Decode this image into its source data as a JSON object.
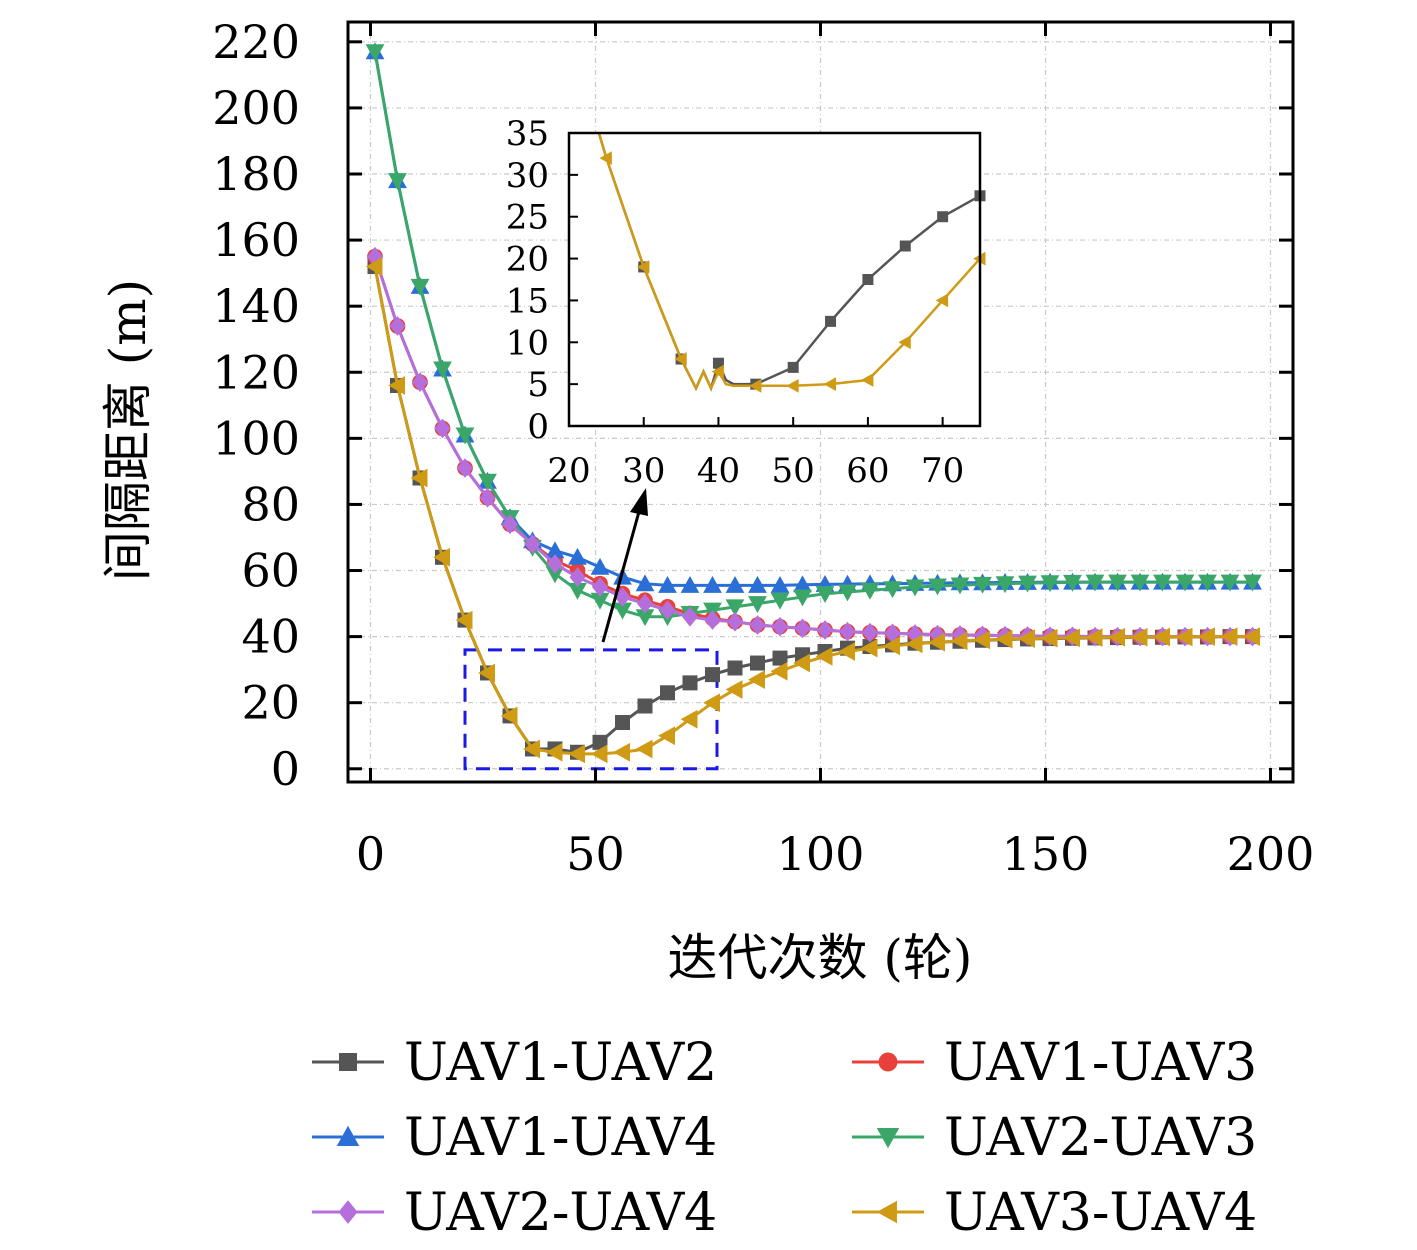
{
  "chart_data": {
    "type": "line",
    "title": "",
    "xlabel": "迭代次数 (轮)",
    "ylabel": "间隔距离 (m)",
    "xlim": [
      -5,
      205
    ],
    "ylim": [
      -4,
      226
    ],
    "xticks": [
      0,
      50,
      100,
      150,
      200
    ],
    "yticks": [
      0,
      20,
      40,
      60,
      80,
      100,
      120,
      140,
      160,
      180,
      200,
      220
    ],
    "grid": true,
    "legend_position": "bottom, two columns",
    "series": [
      {
        "name": "UAV1-UAV2",
        "color": "#555555",
        "marker": "square",
        "x": [
          1,
          6,
          11,
          16,
          21,
          26,
          31,
          36,
          41,
          46,
          51,
          56,
          61,
          66,
          71,
          76,
          81,
          86,
          91,
          96,
          101,
          106,
          111,
          116,
          121,
          126,
          131,
          136,
          141,
          146,
          151,
          156,
          161,
          166,
          171,
          176,
          181,
          186,
          191,
          196
        ],
        "y": [
          152,
          116,
          88,
          64,
          45,
          29,
          16,
          6,
          6,
          5,
          8,
          14,
          19,
          23,
          26,
          28.5,
          30.5,
          32,
          33.5,
          34.5,
          35.5,
          36.5,
          37,
          37.5,
          38,
          38.3,
          38.6,
          38.9,
          39.1,
          39.3,
          39.4,
          39.5,
          39.6,
          39.7,
          39.8,
          39.8,
          39.9,
          39.9,
          40,
          40
        ]
      },
      {
        "name": "UAV1-UAV3",
        "color": "#e8413a",
        "marker": "circle",
        "x": [
          1,
          6,
          11,
          16,
          21,
          26,
          31,
          36,
          41,
          46,
          51,
          56,
          61,
          66,
          71,
          76,
          81,
          86,
          91,
          96,
          101,
          106,
          111,
          116,
          121,
          126,
          131,
          136,
          141,
          146,
          151,
          156,
          161,
          166,
          171,
          176,
          181,
          186,
          191,
          196
        ],
        "y": [
          155,
          134,
          117,
          103,
          91,
          82,
          74,
          68,
          63,
          60,
          56,
          53,
          51,
          49,
          47,
          45.5,
          44.5,
          43.5,
          43,
          42.5,
          42,
          41.5,
          41.2,
          41,
          40.8,
          40.6,
          40.5,
          40.4,
          40.3,
          40.2,
          40.1,
          40.1,
          40,
          40,
          40,
          40,
          40,
          40,
          40,
          40
        ]
      },
      {
        "name": "UAV1-UAV4",
        "color": "#2b6fd6",
        "marker": "triangle-up",
        "x": [
          1,
          6,
          11,
          16,
          21,
          26,
          31,
          36,
          41,
          46,
          51,
          56,
          61,
          66,
          71,
          76,
          81,
          86,
          91,
          96,
          101,
          106,
          111,
          116,
          121,
          126,
          131,
          136,
          141,
          146,
          151,
          156,
          161,
          166,
          171,
          176,
          181,
          186,
          191,
          196
        ],
        "y": [
          217,
          178,
          146,
          121,
          101,
          87,
          76,
          69,
          66,
          64,
          61,
          58,
          56,
          55.5,
          55.5,
          55.5,
          55.5,
          55.5,
          55.5,
          55.7,
          55.8,
          55.9,
          56,
          56,
          56.1,
          56.2,
          56.3,
          56.3,
          56.4,
          56.4,
          56.5,
          56.5,
          56.5,
          56.5,
          56.5,
          56.5,
          56.5,
          56.5,
          56.5,
          56.5
        ]
      },
      {
        "name": "UAV2-UAV3",
        "color": "#3aa769",
        "marker": "triangle-down",
        "x": [
          1,
          6,
          11,
          16,
          21,
          26,
          31,
          36,
          41,
          46,
          51,
          56,
          61,
          66,
          71,
          76,
          81,
          86,
          91,
          96,
          101,
          106,
          111,
          116,
          121,
          126,
          131,
          136,
          141,
          146,
          151,
          156,
          161,
          166,
          171,
          176,
          181,
          186,
          191,
          196
        ],
        "y": [
          217,
          178,
          146,
          121,
          101,
          87,
          76,
          67,
          59,
          54,
          51,
          48,
          46,
          46,
          47,
          48,
          49,
          50,
          51,
          52,
          53,
          53.5,
          54,
          54.5,
          55,
          55.3,
          55.6,
          55.8,
          56,
          56.2,
          56.3,
          56.4,
          56.5,
          56.5,
          56.5,
          56.5,
          56.5,
          56.5,
          56.5,
          56.5
        ]
      },
      {
        "name": "UAV2-UAV4",
        "color": "#b46fdc",
        "marker": "diamond",
        "x": [
          1,
          6,
          11,
          16,
          21,
          26,
          31,
          36,
          41,
          46,
          51,
          56,
          61,
          66,
          71,
          76,
          81,
          86,
          91,
          96,
          101,
          106,
          111,
          116,
          121,
          126,
          131,
          136,
          141,
          146,
          151,
          156,
          161,
          166,
          171,
          176,
          181,
          186,
          191,
          196
        ],
        "y": [
          155,
          134,
          117,
          103,
          91,
          82,
          74,
          68,
          62,
          58,
          55,
          52,
          50,
          48,
          46,
          45,
          44.5,
          43.5,
          43,
          42.5,
          42,
          41.5,
          41.2,
          41,
          40.8,
          40.6,
          40.5,
          40.4,
          40.3,
          40.2,
          40.1,
          40.1,
          40,
          40,
          40,
          40,
          40,
          40,
          40,
          40
        ]
      },
      {
        "name": "UAV3-UAV4",
        "color": "#cf9b14",
        "marker": "triangle-left",
        "x": [
          1,
          6,
          11,
          16,
          21,
          26,
          31,
          36,
          41,
          46,
          51,
          56,
          61,
          66,
          71,
          76,
          81,
          86,
          91,
          96,
          101,
          106,
          111,
          116,
          121,
          126,
          131,
          136,
          141,
          146,
          151,
          156,
          161,
          166,
          171,
          176,
          181,
          186,
          191,
          196
        ],
        "y": [
          152,
          116,
          88,
          64,
          45,
          29,
          16,
          6,
          5,
          4.5,
          4.5,
          5,
          6,
          10,
          15,
          20,
          24,
          27,
          29.5,
          32,
          34,
          35.5,
          36.5,
          37.2,
          37.8,
          38.3,
          38.7,
          39,
          39.2,
          39.4,
          39.5,
          39.6,
          39.7,
          39.8,
          39.8,
          39.9,
          39.9,
          40,
          40,
          40
        ]
      }
    ],
    "highlight_box": {
      "x": [
        21,
        77
      ],
      "y": [
        0,
        36
      ]
    },
    "inset": {
      "xlim": [
        20,
        75
      ],
      "ylim": [
        0,
        35
      ],
      "xticks": [
        20,
        30,
        40,
        50,
        60,
        70
      ],
      "yticks": [
        0,
        5,
        10,
        15,
        20,
        25,
        30,
        35
      ],
      "series": [
        {
          "name": "UAV1-UAV2",
          "color": "#555555",
          "marker": "square",
          "x": [
            24,
            25,
            30,
            35,
            37,
            38,
            39,
            40,
            41,
            42,
            45,
            50,
            55,
            60,
            65,
            70,
            75
          ],
          "y": [
            35,
            32,
            19,
            8,
            4.5,
            6.5,
            4.5,
            7.5,
            5.5,
            5,
            5,
            7,
            12.5,
            17.5,
            21.5,
            25,
            27.5
          ],
          "markers_at": [
            30,
            35,
            40,
            45,
            50,
            55,
            60,
            65,
            70,
            75
          ]
        },
        {
          "name": "UAV3-UAV4",
          "color": "#cf9b14",
          "marker": "triangle-left",
          "x": [
            24,
            25,
            30,
            35,
            37,
            38,
            39,
            40,
            41,
            42,
            45,
            50,
            55,
            60,
            65,
            70,
            75
          ],
          "y": [
            35,
            32,
            19,
            8,
            4.5,
            6.5,
            4.5,
            6.5,
            5,
            4.8,
            4.8,
            4.8,
            5,
            5.5,
            10,
            15,
            20
          ],
          "markers_at": [
            25,
            30,
            35,
            40,
            45,
            50,
            55,
            60,
            65,
            70,
            75
          ]
        }
      ]
    }
  }
}
